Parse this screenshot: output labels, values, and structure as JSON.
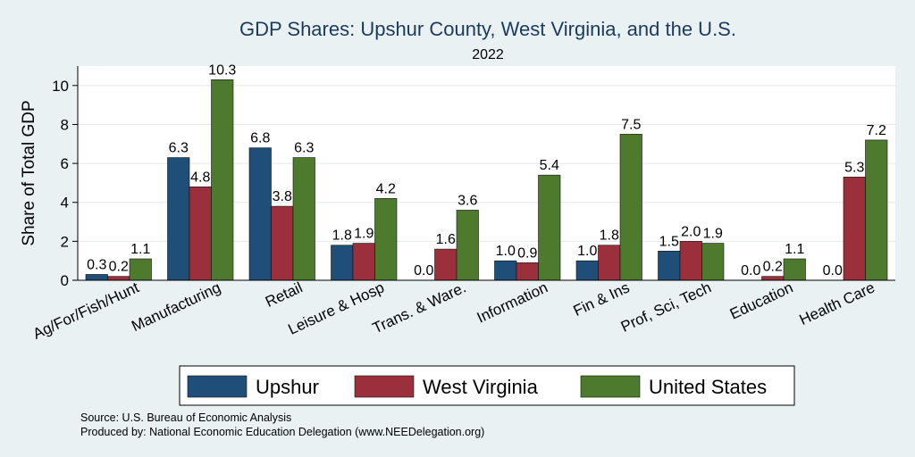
{
  "chart_data": {
    "type": "bar",
    "title": "GDP Shares: Upshur County, West Virginia, and the U.S.",
    "subtitle": "2022",
    "ylabel": "Share of Total GDP",
    "xlabel": "",
    "ylim": [
      0,
      11
    ],
    "yticks": [
      0,
      2,
      4,
      6,
      8,
      10
    ],
    "grid": true,
    "legend_position": "bottom",
    "categories": [
      "Ag/For/Fish/Hunt",
      "Manufacturing",
      "Retail",
      "Leisure & Hosp",
      "Trans. & Ware.",
      "Information",
      "Fin & Ins",
      "Prof, Sci, Tech",
      "Education",
      "Health Care"
    ],
    "series": [
      {
        "name": "Upshur",
        "color": "#1f4e79",
        "values": [
          0.3,
          6.3,
          6.8,
          1.8,
          0.0,
          1.0,
          1.0,
          1.5,
          0.0,
          0.0
        ],
        "labels": [
          "0.3",
          "6.3",
          "6.8",
          "1.8",
          "0.0",
          "1.0",
          "1.0",
          "1.5",
          "0.0",
          "0.0"
        ]
      },
      {
        "name": "West Virginia",
        "color": "#9b2f3c",
        "values": [
          0.2,
          4.8,
          3.8,
          1.9,
          1.6,
          0.9,
          1.8,
          2.0,
          0.2,
          5.3
        ],
        "labels": [
          "0.2",
          "4.8",
          "3.8",
          "1.9",
          "1.6",
          "0.9",
          "1.8",
          "2.0",
          "0.2",
          "5.3"
        ]
      },
      {
        "name": "United States",
        "color": "#4e7a2e",
        "values": [
          1.1,
          10.3,
          6.3,
          4.2,
          3.6,
          5.4,
          7.5,
          1.9,
          1.1,
          7.2
        ],
        "labels": [
          "1.1",
          "10.3",
          "6.3",
          "4.2",
          "3.6",
          "5.4",
          "7.5",
          "1.9",
          "1.1",
          "7.2"
        ]
      }
    ]
  },
  "notes": {
    "source": "Source: U.S. Bureau of Economic Analysis",
    "produced": "Produced by: National Economic Education Delegation (www.NEEDelegation.org)"
  }
}
